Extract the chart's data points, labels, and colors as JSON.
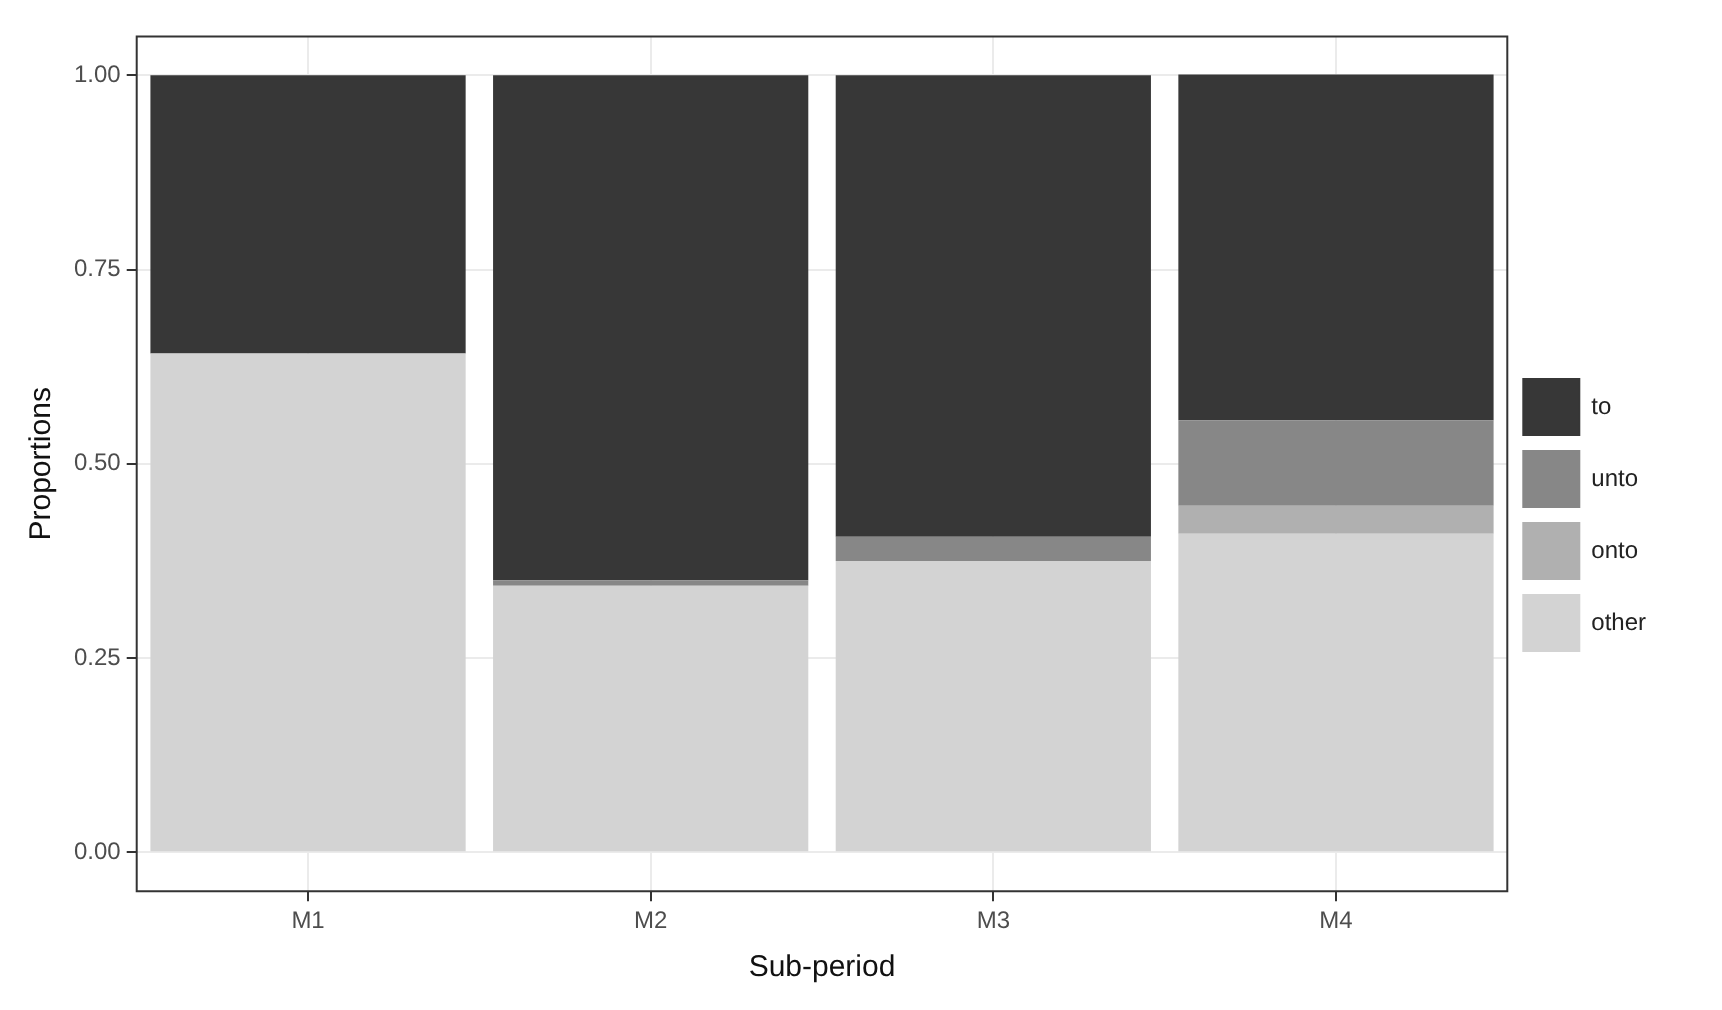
{
  "chart_data": {
    "type": "bar",
    "stacked": true,
    "xlabel": "Sub-period",
    "ylabel": "Proportions",
    "categories": [
      "M1",
      "M2",
      "M3",
      "M4"
    ],
    "series": [
      {
        "name": "other",
        "color": "#d3d3d3",
        "values": [
          0.642,
          0.343,
          0.375,
          0.41
        ]
      },
      {
        "name": "onto",
        "color": "#b0b0b0",
        "values": [
          0,
          0,
          0,
          0.036
        ]
      },
      {
        "name": "unto",
        "color": "#878787",
        "values": [
          0,
          0.007,
          0.031,
          0.11
        ]
      },
      {
        "name": "to",
        "color": "#373737",
        "values": [
          0.358,
          0.65,
          0.594,
          0.445
        ]
      }
    ],
    "ylim": [
      -0.05,
      1.05
    ],
    "yticks": [
      {
        "value": 0,
        "label": "0.00"
      },
      {
        "value": 0.25,
        "label": "0.25"
      },
      {
        "value": 0.5,
        "label": "0.50"
      },
      {
        "value": 0.75,
        "label": "0.75"
      },
      {
        "value": 1,
        "label": "1.00"
      }
    ],
    "grid": true,
    "legend": "right"
  }
}
